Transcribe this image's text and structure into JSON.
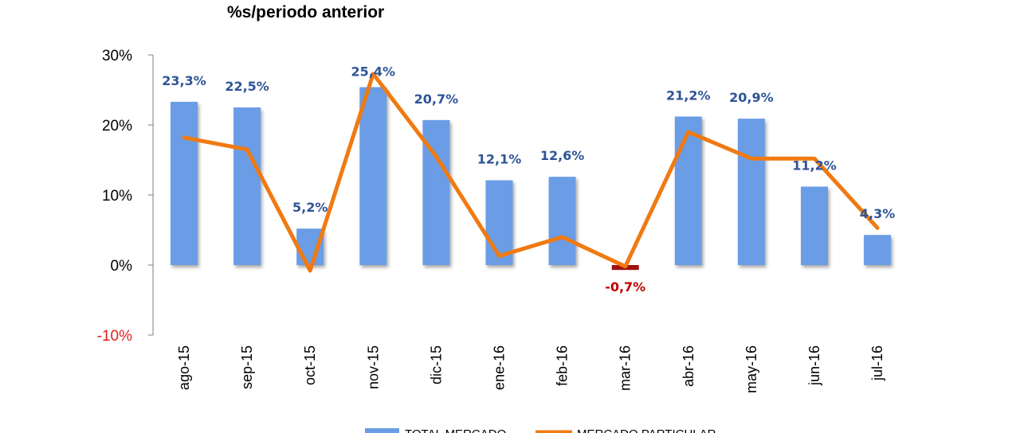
{
  "chart_data": {
    "type": "bar+line",
    "title": "%s/periodo anterior",
    "categories": [
      "ago-15",
      "sep-15",
      "oct-15",
      "nov-15",
      "dic-15",
      "ene-16",
      "feb-16",
      "mar-16",
      "abr-16",
      "may-16",
      "jun-16",
      "jul-16"
    ],
    "series": [
      {
        "name": "TOTAL MERCADO",
        "type": "bar",
        "values": [
          23.3,
          22.5,
          5.2,
          25.4,
          20.7,
          12.1,
          12.6,
          -0.7,
          21.2,
          20.9,
          11.2,
          4.3
        ],
        "labels": [
          "23,3%",
          "22,5%",
          "5,2%",
          "25,4%",
          "20,7%",
          "12,1%",
          "12,6%",
          "-0,7%",
          "21,2%",
          "20,9%",
          "11,2%",
          "4,3%"
        ]
      },
      {
        "name": "MERCADO PARTICULAR",
        "type": "line",
        "values": [
          18.2,
          16.5,
          -0.8,
          27.3,
          15.5,
          1.3,
          4.0,
          -0.2,
          19.0,
          15.2,
          15.2,
          5.3
        ]
      }
    ],
    "yticks": [
      30,
      20,
      10,
      0,
      -10
    ],
    "ytick_labels": [
      "30%",
      "20%",
      "10%",
      "0%",
      "-10%"
    ],
    "ylim": [
      -10,
      30
    ],
    "negative_tick_color": "#e02020",
    "negative_label_color": "#c00000",
    "bar_color": "#6a9de6",
    "negative_bar_color": "#a01010",
    "line_color": "#f07a12",
    "label_color": "#2f5496",
    "legend_position": "bottom"
  }
}
